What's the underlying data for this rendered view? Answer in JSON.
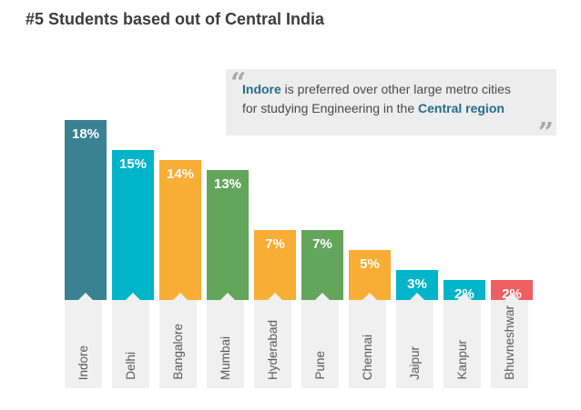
{
  "page": {
    "background": "#ffffff"
  },
  "quote": {
    "open_mark": "“",
    "close_mark": "”",
    "line1_highlight": "Indore",
    "line1_rest": " is preferred over other large metro cities",
    "line2_rest": "for studying Engineering in the ",
    "line2_highlight": "Central region",
    "highlight_color": "#256c8a",
    "text_color": "#4a4a4a",
    "background": "#ededed"
  },
  "chart_data": {
    "type": "bar",
    "title": "#5 Students based out of Central India",
    "categories": [
      "Indore",
      "Delhi",
      "Bangalore",
      "Mumbai",
      "Hyderabad",
      "Pune",
      "Chennai",
      "Jaipur",
      "Kanpur",
      "Bhuvneshwar"
    ],
    "values": [
      18,
      15,
      14,
      13,
      7,
      7,
      5,
      3,
      2,
      2
    ],
    "labels": [
      "18%",
      "15%",
      "14%",
      "13%",
      "7%",
      "7%",
      "5%",
      "3%",
      "2%",
      "2%"
    ],
    "bar_colors": [
      "#3a8191",
      "#00b5c9",
      "#f8ad34",
      "#64a55c",
      "#f8ad34",
      "#64a55c",
      "#f8ad34",
      "#00b5c9",
      "#00b5c9",
      "#ee5f63"
    ],
    "value_label_color": "#ffffff",
    "axis_label_color": "#5a5a5a",
    "label_box_color": "#f0f0f0",
    "xlabel": "",
    "ylabel": "",
    "ylim": [
      0,
      20
    ],
    "grid": false,
    "legend": false,
    "unit": "%"
  }
}
